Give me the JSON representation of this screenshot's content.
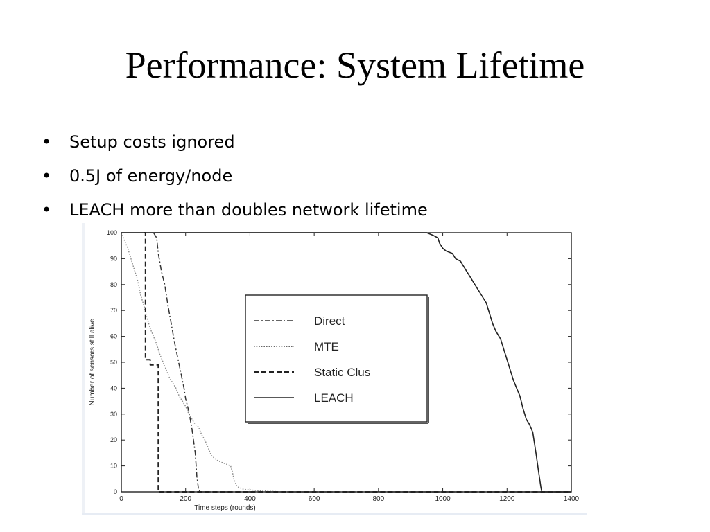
{
  "slide": {
    "title": "Performance: System Lifetime",
    "bullets": [
      "Setup costs ignored",
      "0.5J of energy/node",
      "LEACH more than doubles network lifetime"
    ]
  },
  "chart_data": {
    "type": "line",
    "title": "",
    "xlabel": "Time steps (rounds)",
    "ylabel": "Number of sensors still alive",
    "xlim": [
      0,
      1400
    ],
    "ylim": [
      0,
      100
    ],
    "xticks": [
      0,
      200,
      400,
      600,
      800,
      1000,
      1200,
      1400
    ],
    "yticks": [
      0,
      10,
      20,
      30,
      40,
      50,
      60,
      70,
      80,
      90,
      100
    ],
    "grid": false,
    "legend_position": "center",
    "series": [
      {
        "name": "Direct",
        "style": "dashdot",
        "points": [
          [
            100,
            100
          ],
          [
            110,
            98
          ],
          [
            115,
            92
          ],
          [
            125,
            85
          ],
          [
            135,
            80
          ],
          [
            145,
            72
          ],
          [
            155,
            65
          ],
          [
            165,
            58
          ],
          [
            175,
            52
          ],
          [
            185,
            46
          ],
          [
            195,
            40
          ],
          [
            200,
            36
          ],
          [
            210,
            31
          ],
          [
            220,
            24
          ],
          [
            230,
            15
          ],
          [
            235,
            6
          ],
          [
            240,
            1
          ],
          [
            245,
            0
          ],
          [
            1400,
            0
          ]
        ]
      },
      {
        "name": "MTE",
        "style": "dotted",
        "points": [
          [
            0,
            100
          ],
          [
            10,
            97
          ],
          [
            20,
            94
          ],
          [
            30,
            90
          ],
          [
            40,
            86
          ],
          [
            50,
            82
          ],
          [
            60,
            76
          ],
          [
            70,
            72
          ],
          [
            80,
            67
          ],
          [
            90,
            63
          ],
          [
            100,
            60
          ],
          [
            110,
            57
          ],
          [
            120,
            53
          ],
          [
            130,
            50
          ],
          [
            140,
            47
          ],
          [
            150,
            44
          ],
          [
            160,
            42
          ],
          [
            170,
            40
          ],
          [
            180,
            37
          ],
          [
            190,
            35
          ],
          [
            200,
            33
          ],
          [
            210,
            30
          ],
          [
            220,
            28
          ],
          [
            230,
            26
          ],
          [
            240,
            25
          ],
          [
            250,
            22
          ],
          [
            260,
            20
          ],
          [
            270,
            17
          ],
          [
            280,
            14
          ],
          [
            290,
            13
          ],
          [
            300,
            12
          ],
          [
            310,
            11.5
          ],
          [
            320,
            11
          ],
          [
            330,
            10.5
          ],
          [
            340,
            10
          ],
          [
            345,
            8
          ],
          [
            350,
            5
          ],
          [
            360,
            2
          ],
          [
            380,
            1
          ],
          [
            420,
            0.5
          ],
          [
            500,
            0
          ],
          [
            1400,
            0
          ]
        ]
      },
      {
        "name": "Static Clus",
        "style": "dashed",
        "points": [
          [
            70,
            100
          ],
          [
            75,
            100
          ],
          [
            75,
            51
          ],
          [
            90,
            51
          ],
          [
            90,
            49
          ],
          [
            115,
            49
          ],
          [
            115,
            0
          ],
          [
            1400,
            0
          ]
        ]
      },
      {
        "name": "LEACH",
        "style": "solid",
        "points": [
          [
            0,
            100
          ],
          [
            950,
            100
          ],
          [
            970,
            99
          ],
          [
            985,
            98
          ],
          [
            990,
            96
          ],
          [
            1000,
            94
          ],
          [
            1010,
            93
          ],
          [
            1030,
            92
          ],
          [
            1040,
            90
          ],
          [
            1055,
            89
          ],
          [
            1065,
            87
          ],
          [
            1075,
            85
          ],
          [
            1085,
            83
          ],
          [
            1095,
            81
          ],
          [
            1105,
            79
          ],
          [
            1115,
            77
          ],
          [
            1125,
            75
          ],
          [
            1135,
            73
          ],
          [
            1145,
            69
          ],
          [
            1155,
            65
          ],
          [
            1165,
            62
          ],
          [
            1180,
            59
          ],
          [
            1190,
            55
          ],
          [
            1200,
            51
          ],
          [
            1210,
            47
          ],
          [
            1220,
            43
          ],
          [
            1230,
            40
          ],
          [
            1240,
            37
          ],
          [
            1250,
            32
          ],
          [
            1260,
            28
          ],
          [
            1270,
            26
          ],
          [
            1280,
            23
          ],
          [
            1290,
            15
          ],
          [
            1298,
            8
          ],
          [
            1305,
            2
          ],
          [
            1308,
            0
          ],
          [
            1400,
            0
          ]
        ]
      }
    ]
  }
}
